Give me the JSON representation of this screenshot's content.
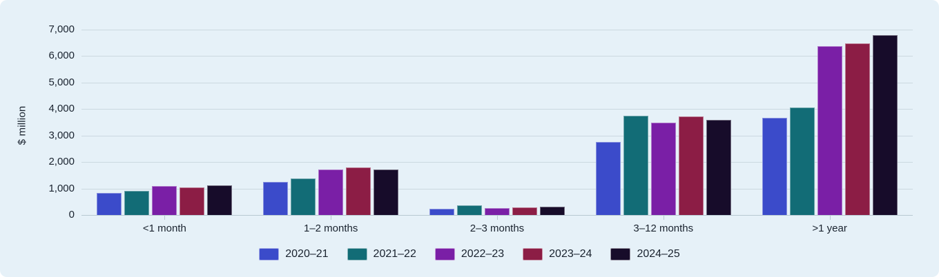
{
  "chart_data": {
    "type": "bar",
    "title": "",
    "xlabel": "",
    "ylabel": "$ million",
    "categories": [
      "<1 month",
      "1–2 months",
      "2–3 months",
      "3–12 months",
      ">1 year"
    ],
    "series": [
      {
        "name": "2020–21",
        "color": "#3b4bca",
        "values": [
          820,
          1260,
          240,
          2760,
          3680
        ]
      },
      {
        "name": "2021–22",
        "color": "#126c76",
        "values": [
          910,
          1370,
          360,
          3740,
          4060
        ]
      },
      {
        "name": "2022–23",
        "color": "#7a1fa6",
        "values": [
          1080,
          1720,
          260,
          3490,
          6380
        ]
      },
      {
        "name": "2023–24",
        "color": "#8c1d45",
        "values": [
          1030,
          1790,
          290,
          3720,
          6490
        ]
      },
      {
        "name": "2024–25",
        "color": "#170c2a",
        "values": [
          1130,
          1720,
          320,
          3600,
          6800
        ]
      }
    ],
    "y_ticks": [
      0,
      1000,
      2000,
      3000,
      4000,
      5000,
      6000,
      7000
    ],
    "ylim": [
      0,
      7000
    ],
    "grid": true,
    "legend_position": "bottom"
  },
  "colors": {
    "background": "#e6f1f8",
    "page": "#ffffff",
    "gridline": "#cbd8e0",
    "baseline": "#b7c8d1",
    "text": "#19222e"
  }
}
